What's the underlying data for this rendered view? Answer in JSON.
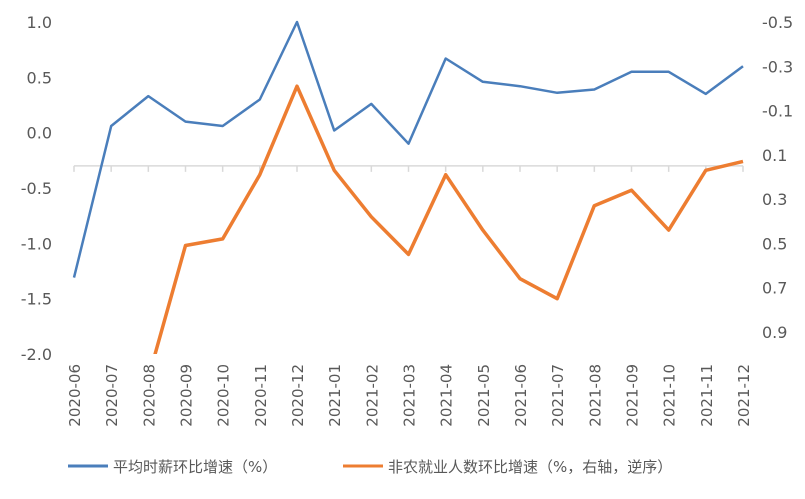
{
  "chart_data": {
    "type": "line",
    "title": "",
    "categories": [
      "2020-06",
      "2020-07",
      "2020-08",
      "2020-09",
      "2020-10",
      "2020-11",
      "2020-12",
      "2021-01",
      "2021-02",
      "2021-03",
      "2021-04",
      "2021-05",
      "2021-06",
      "2021-07",
      "2021-08",
      "2021-09",
      "2021-10",
      "2021-11",
      "2021-12"
    ],
    "left_axis": {
      "min": -2.0,
      "max": 1.0,
      "step": 0.5,
      "ticks": [
        "1.0",
        "0.5",
        "0.0",
        "-0.5",
        "-1.0",
        "-1.5",
        "-2.0"
      ],
      "crosses_at": -0.3
    },
    "right_axis": {
      "min": -0.5,
      "max": 1.0,
      "reversed": true,
      "ticks": [
        "-0.5",
        "-0.3",
        "-0.1",
        "0.1",
        "0.3",
        "0.5",
        "0.7",
        "0.9"
      ]
    },
    "series": [
      {
        "name": "平均时薪环比增速（%）",
        "axis": "left",
        "color": "#4A7EBB",
        "values": [
          -1.31,
          0.06,
          0.33,
          0.1,
          0.06,
          0.3,
          1.0,
          0.02,
          0.26,
          -0.1,
          0.67,
          0.46,
          0.42,
          0.36,
          0.39,
          0.55,
          0.55,
          0.35,
          0.6
        ]
      },
      {
        "name": "非农就业人数环比增速（%，右轴，逆序）",
        "axis": "right",
        "color": "#ED7D31",
        "values": [
          null,
          null,
          1.11,
          0.51,
          0.48,
          0.19,
          -0.21,
          0.17,
          0.38,
          0.55,
          0.19,
          0.44,
          0.66,
          0.75,
          0.33,
          0.26,
          0.44,
          0.17,
          0.13
        ]
      }
    ],
    "legend": "bottom",
    "grid": false
  }
}
